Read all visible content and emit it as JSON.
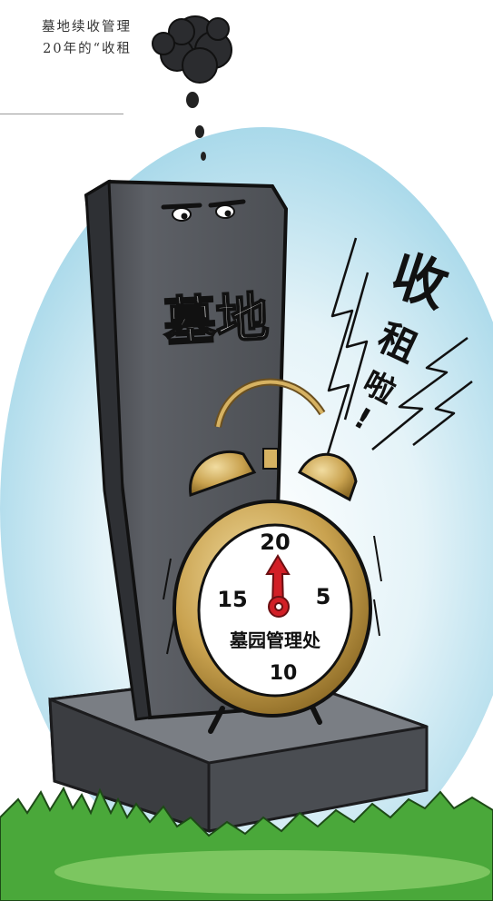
{
  "article": {
    "line1": "墓地续收管理",
    "line2": "20年的“收租"
  },
  "cartoon": {
    "tombstone_text": "墓地",
    "shout_text": [
      "收",
      "租",
      "啦",
      "!"
    ],
    "clock": {
      "numbers": [
        "20",
        "5",
        "10",
        "15"
      ],
      "label": "墓园管理处"
    },
    "colors": {
      "stone": "#55585d",
      "stone_dark": "#3e4045",
      "brass": "#c9a24f",
      "hand": "#d21f26",
      "grass": "#4aa83a",
      "sky": "#bfe3ef"
    }
  }
}
